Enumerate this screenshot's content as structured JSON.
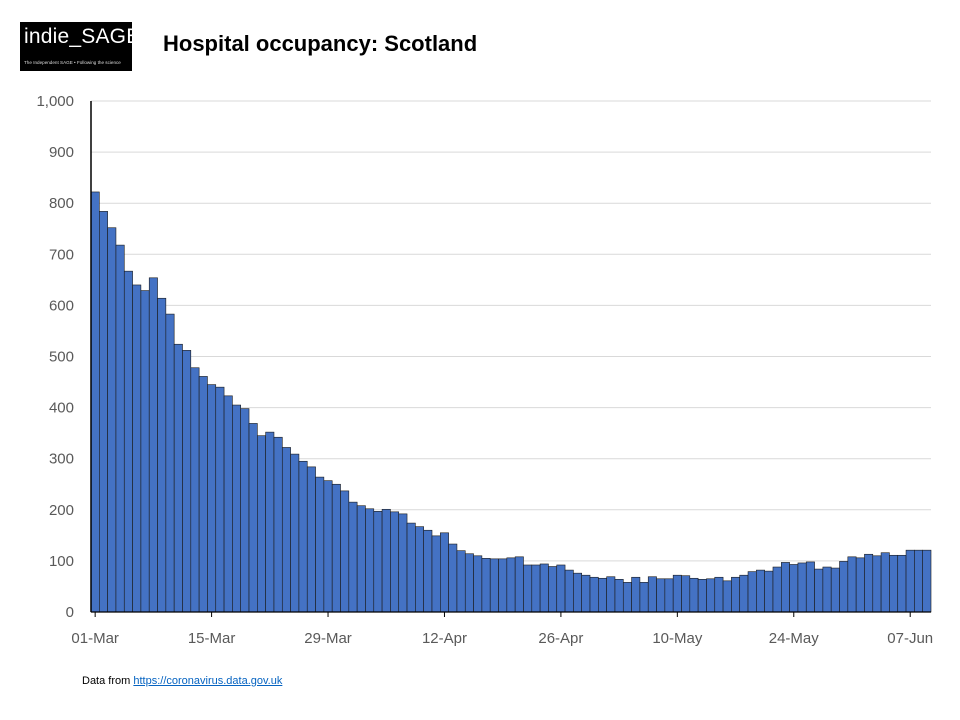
{
  "logo": {
    "text": "indie_SAGE",
    "tagline": "The Independent SAGE • Following the science"
  },
  "chart_data": {
    "type": "bar",
    "title": "Hospital occupancy: Scotland",
    "xlabel": "",
    "ylabel": "",
    "ylim": [
      0,
      1000
    ],
    "yticks": [
      "0",
      "100",
      "200",
      "300",
      "400",
      "500",
      "600",
      "700",
      "800",
      "900",
      "1,000"
    ],
    "x_tick_labels": [
      "01-Mar",
      "15-Mar",
      "29-Mar",
      "12-Apr",
      "26-Apr",
      "10-May",
      "24-May",
      "07-Jun"
    ],
    "grid": true,
    "bar_color": "#4472c4",
    "categories": [
      "01-Mar",
      "02-Mar",
      "03-Mar",
      "04-Mar",
      "05-Mar",
      "06-Mar",
      "07-Mar",
      "08-Mar",
      "09-Mar",
      "10-Mar",
      "11-Mar",
      "12-Mar",
      "13-Mar",
      "14-Mar",
      "15-Mar",
      "16-Mar",
      "17-Mar",
      "18-Mar",
      "19-Mar",
      "20-Mar",
      "21-Mar",
      "22-Mar",
      "23-Mar",
      "24-Mar",
      "25-Mar",
      "26-Mar",
      "27-Mar",
      "28-Mar",
      "29-Mar",
      "30-Mar",
      "31-Mar",
      "01-Apr",
      "02-Apr",
      "03-Apr",
      "04-Apr",
      "05-Apr",
      "06-Apr",
      "07-Apr",
      "08-Apr",
      "09-Apr",
      "10-Apr",
      "11-Apr",
      "12-Apr",
      "13-Apr",
      "14-Apr",
      "15-Apr",
      "16-Apr",
      "17-Apr",
      "18-Apr",
      "19-Apr",
      "20-Apr",
      "21-Apr",
      "22-Apr",
      "23-Apr",
      "24-Apr",
      "25-Apr",
      "26-Apr",
      "27-Apr",
      "28-Apr",
      "29-Apr",
      "30-Apr",
      "01-May",
      "02-May",
      "03-May",
      "04-May",
      "05-May",
      "06-May",
      "07-May",
      "08-May",
      "09-May",
      "10-May",
      "11-May",
      "12-May",
      "13-May",
      "14-May",
      "15-May",
      "16-May",
      "17-May",
      "18-May",
      "19-May",
      "20-May",
      "21-May",
      "22-May",
      "23-May",
      "24-May",
      "25-May",
      "26-May",
      "27-May",
      "28-May",
      "29-May",
      "30-May",
      "31-May",
      "01-Jun",
      "02-Jun",
      "03-Jun",
      "04-Jun",
      "05-Jun",
      "06-Jun",
      "07-Jun",
      "08-Jun",
      "09-Jun"
    ],
    "values": [
      822,
      784,
      752,
      718,
      667,
      640,
      629,
      654,
      614,
      583,
      524,
      512,
      478,
      461,
      445,
      440,
      423,
      405,
      398,
      369,
      345,
      352,
      342,
      322,
      309,
      295,
      284,
      264,
      257,
      250,
      237,
      215,
      208,
      202,
      197,
      201,
      196,
      192,
      174,
      167,
      160,
      149,
      155,
      133,
      120,
      114,
      110,
      105,
      104,
      104,
      106,
      108,
      92,
      92,
      94,
      89,
      92,
      82,
      76,
      72,
      68,
      66,
      69,
      64,
      58,
      68,
      58,
      69,
      65,
      65,
      72,
      71,
      66,
      64,
      65,
      68,
      61,
      68,
      72,
      79,
      82,
      80,
      88,
      97,
      93,
      96,
      98,
      84,
      88,
      86,
      99,
      108,
      106,
      113,
      110,
      116,
      111,
      111,
      121,
      121,
      121
    ]
  },
  "source": {
    "prefix": "Data from ",
    "link_text": "https://coronavirus.data.gov.uk"
  }
}
